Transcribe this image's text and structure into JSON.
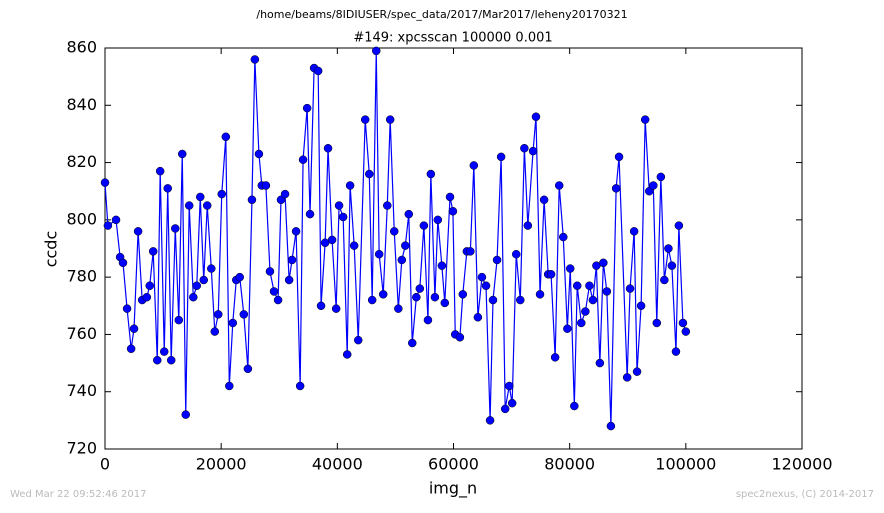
{
  "chart_data": {
    "type": "line",
    "suptitle": "/home/beams/8IDIUSER/spec_data/2017/Mar2017/leheny20170321",
    "title": "#149: xpcsscan 100000 0.001",
    "xlabel": "img_n",
    "ylabel": "ccdc",
    "footer_left": "Wed Mar 22 09:52:46 2017",
    "footer_right": "spec2nexus, (C) 2014-2017",
    "xlim": [
      0,
      120000
    ],
    "xticks": [
      0,
      20000,
      40000,
      60000,
      80000,
      100000,
      120000
    ],
    "ylim": [
      720,
      860
    ],
    "yticks": [
      720,
      740,
      760,
      780,
      800,
      820,
      840,
      860
    ],
    "grid": false,
    "x": [
      0,
      500,
      1900,
      2600,
      3100,
      3800,
      4500,
      5000,
      5700,
      6400,
      7200,
      7700,
      8300,
      9000,
      9500,
      10200,
      10800,
      11400,
      12100,
      12700,
      13300,
      13900,
      14500,
      15200,
      15800,
      16400,
      17000,
      17600,
      18300,
      18900,
      19500,
      20100,
      20800,
      21400,
      22000,
      22600,
      23200,
      23900,
      24600,
      25300,
      25800,
      26500,
      27000,
      27700,
      28400,
      29100,
      29800,
      30300,
      31000,
      31700,
      32200,
      32900,
      33600,
      34100,
      34800,
      35300,
      36000,
      36700,
      37200,
      37900,
      38400,
      39100,
      39800,
      40300,
      41000,
      41700,
      42200,
      42900,
      43600,
      44800,
      45500,
      46000,
      46700,
      47200,
      47900,
      48600,
      49100,
      49800,
      50500,
      51100,
      51700,
      52300,
      52900,
      53600,
      54200,
      54900,
      55600,
      56100,
      56800,
      57300,
      58000,
      58500,
      59400,
      59900,
      60300,
      61100,
      61600,
      62300,
      62900,
      63500,
      64200,
      64900,
      65600,
      66300,
      66800,
      67500,
      68200,
      68900,
      69600,
      70100,
      70800,
      71500,
      72200,
      72800,
      73700,
      74200,
      74900,
      75600,
      76300,
      76800,
      77500,
      78200,
      78900,
      79600,
      80100,
      80800,
      81300,
      82000,
      82700,
      83400,
      84000,
      84600,
      85200,
      85800,
      86400,
      87100,
      88000,
      88500,
      89900,
      90400,
      91100,
      91600,
      92300,
      93000,
      93700,
      94400,
      95000,
      95700,
      96300,
      97000,
      97600,
      98300,
      98800,
      99500,
      100000
    ],
    "series": [
      {
        "name": "ccdc",
        "color": "#0000ff",
        "values": [
          813,
          798,
          800,
          787,
          785,
          769,
          755,
          762,
          796,
          772,
          773,
          777,
          789,
          751,
          817,
          754,
          811,
          751,
          797,
          765,
          823,
          732,
          805,
          773,
          777,
          808,
          779,
          805,
          783,
          761,
          767,
          809,
          829,
          742,
          764,
          779,
          780,
          767,
          748,
          807,
          856,
          823,
          812,
          812,
          782,
          775,
          772,
          807,
          809,
          779,
          786,
          796,
          742,
          821,
          839,
          802,
          853,
          852,
          770,
          792,
          825,
          793,
          769,
          805,
          801,
          753,
          812,
          791,
          758,
          835,
          816,
          772,
          859,
          788,
          774,
          805,
          835,
          796,
          769,
          786,
          791,
          802,
          757,
          773,
          776,
          798,
          765,
          816,
          773,
          800,
          784,
          771,
          808,
          803,
          760,
          759,
          774,
          789,
          789,
          819,
          766,
          780,
          777,
          730,
          772,
          786,
          822,
          734,
          742,
          736,
          788,
          772,
          825,
          798,
          824,
          836,
          774,
          807,
          781,
          781,
          752,
          812,
          794,
          762,
          783,
          735,
          777,
          764,
          768,
          777,
          772,
          784,
          750,
          785,
          775,
          728,
          811,
          822,
          745,
          776,
          796,
          747,
          770,
          835,
          810,
          812,
          764,
          815,
          779,
          790,
          784,
          754,
          798,
          764,
          761
        ]
      }
    ]
  }
}
